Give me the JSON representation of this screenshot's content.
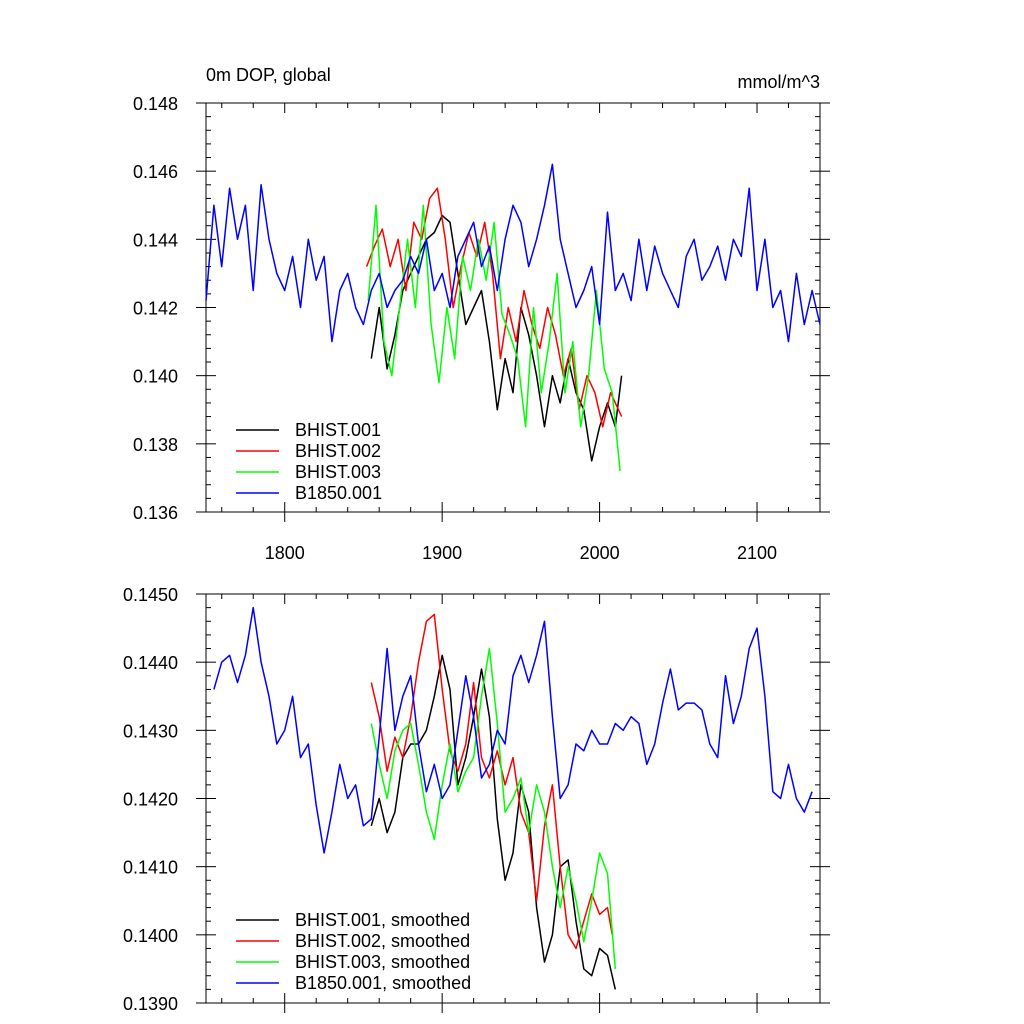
{
  "chart_data": [
    {
      "type": "line",
      "title": "0m DOP, global",
      "units": "mmol/m^3",
      "xlim": [
        1750,
        2140
      ],
      "ylim": [
        0.136,
        0.148
      ],
      "x_ticks": [
        1800,
        1900,
        2000,
        2100
      ],
      "x_tick_labels": [
        "1800",
        "1900",
        "2000",
        "2100"
      ],
      "y_ticks": [
        0.136,
        0.138,
        0.14,
        0.142,
        0.144,
        0.146,
        0.148
      ],
      "y_tick_labels": [
        "0.136",
        "0.138",
        "0.140",
        "0.142",
        "0.144",
        "0.146",
        "0.148"
      ],
      "legend_position": "bottom-left",
      "series": [
        {
          "name": "BHIST.001",
          "color": "#000000",
          "x": [
            1855,
            1860,
            1865,
            1870,
            1875,
            1880,
            1885,
            1890,
            1895,
            1900,
            1905,
            1910,
            1915,
            1920,
            1925,
            1930,
            1935,
            1940,
            1945,
            1950,
            1955,
            1960,
            1965,
            1970,
            1975,
            1980,
            1985,
            1990,
            1995,
            2000,
            2005,
            2010,
            2014
          ],
          "values": [
            0.1405,
            0.142,
            0.1402,
            0.1412,
            0.1425,
            0.143,
            0.1435,
            0.144,
            0.1442,
            0.1447,
            0.1445,
            0.143,
            0.1415,
            0.142,
            0.1425,
            0.141,
            0.139,
            0.1405,
            0.1395,
            0.142,
            0.1412,
            0.14,
            0.1385,
            0.14,
            0.1392,
            0.1405,
            0.1395,
            0.139,
            0.1375,
            0.1385,
            0.1392,
            0.1385,
            0.14
          ]
        },
        {
          "name": "BHIST.002",
          "color": "#ff0000",
          "x": [
            1852,
            1857,
            1862,
            1867,
            1872,
            1877,
            1882,
            1887,
            1892,
            1897,
            1902,
            1907,
            1912,
            1917,
            1922,
            1927,
            1932,
            1937,
            1942,
            1947,
            1952,
            1957,
            1962,
            1967,
            1972,
            1977,
            1982,
            1987,
            1992,
            1997,
            2002,
            2007,
            2014
          ],
          "values": [
            0.1432,
            0.1438,
            0.1443,
            0.1432,
            0.144,
            0.1425,
            0.1445,
            0.144,
            0.1452,
            0.1455,
            0.144,
            0.142,
            0.1432,
            0.1442,
            0.1435,
            0.1445,
            0.143,
            0.1405,
            0.142,
            0.141,
            0.1425,
            0.1415,
            0.1408,
            0.142,
            0.1412,
            0.14,
            0.1408,
            0.139,
            0.14,
            0.1395,
            0.1385,
            0.1395,
            0.1388
          ]
        },
        {
          "name": "BHIST.003",
          "color": "#00ff00",
          "x": [
            1853,
            1858,
            1863,
            1868,
            1873,
            1878,
            1883,
            1888,
            1893,
            1898,
            1903,
            1908,
            1913,
            1918,
            1923,
            1928,
            1933,
            1938,
            1943,
            1948,
            1953,
            1958,
            1963,
            1968,
            1973,
            1978,
            1983,
            1988,
            1993,
            1998,
            2003,
            2008,
            2013
          ],
          "values": [
            0.1422,
            0.145,
            0.141,
            0.14,
            0.142,
            0.144,
            0.142,
            0.145,
            0.1415,
            0.1398,
            0.142,
            0.1405,
            0.1435,
            0.1425,
            0.144,
            0.1428,
            0.1445,
            0.1418,
            0.1412,
            0.1405,
            0.1385,
            0.142,
            0.1395,
            0.141,
            0.143,
            0.1395,
            0.141,
            0.1385,
            0.14,
            0.1425,
            0.1402,
            0.1395,
            0.1372
          ]
        },
        {
          "name": "B1850.001",
          "color": "#0000ff",
          "x": [
            1750,
            1755,
            1760,
            1765,
            1770,
            1775,
            1780,
            1785,
            1790,
            1795,
            1800,
            1805,
            1810,
            1815,
            1820,
            1825,
            1830,
            1835,
            1840,
            1845,
            1850,
            1855,
            1860,
            1865,
            1870,
            1875,
            1880,
            1885,
            1890,
            1895,
            1900,
            1905,
            1910,
            1915,
            1920,
            1925,
            1930,
            1935,
            1940,
            1945,
            1950,
            1955,
            1960,
            1965,
            1970,
            1975,
            1980,
            1985,
            1990,
            1995,
            2000,
            2005,
            2010,
            2015,
            2020,
            2025,
            2030,
            2035,
            2040,
            2045,
            2050,
            2055,
            2060,
            2065,
            2070,
            2075,
            2080,
            2085,
            2090,
            2095,
            2100,
            2105,
            2110,
            2115,
            2120,
            2125,
            2130,
            2135,
            2140
          ],
          "values": [
            0.1422,
            0.145,
            0.1432,
            0.1455,
            0.144,
            0.145,
            0.1425,
            0.1456,
            0.144,
            0.143,
            0.1425,
            0.1435,
            0.142,
            0.144,
            0.1428,
            0.1435,
            0.141,
            0.1425,
            0.143,
            0.142,
            0.1415,
            0.1425,
            0.143,
            0.142,
            0.1425,
            0.1428,
            0.1435,
            0.143,
            0.144,
            0.1425,
            0.143,
            0.142,
            0.1435,
            0.144,
            0.1445,
            0.1432,
            0.1438,
            0.1425,
            0.144,
            0.145,
            0.1445,
            0.1432,
            0.144,
            0.145,
            0.1462,
            0.144,
            0.143,
            0.142,
            0.1425,
            0.1432,
            0.1415,
            0.1448,
            0.1425,
            0.143,
            0.1422,
            0.144,
            0.1425,
            0.1438,
            0.143,
            0.1425,
            0.142,
            0.1435,
            0.144,
            0.1428,
            0.1432,
            0.1438,
            0.1428,
            0.144,
            0.1435,
            0.1455,
            0.1425,
            0.144,
            0.142,
            0.1425,
            0.141,
            0.143,
            0.1415,
            0.1425,
            0.1415
          ]
        }
      ]
    },
    {
      "type": "line",
      "xlim": [
        1750,
        2140
      ],
      "ylim": [
        0.139,
        0.145
      ],
      "x_ticks": [
        1800,
        1900,
        2000,
        2100
      ],
      "y_ticks": [
        0.139,
        0.14,
        0.141,
        0.142,
        0.143,
        0.144,
        0.145
      ],
      "y_tick_labels": [
        "0.1390",
        "0.1400",
        "0.1410",
        "0.1420",
        "0.1430",
        "0.1440",
        "0.1450"
      ],
      "legend_position": "bottom-left",
      "series": [
        {
          "name": "BHIST.001, smoothed",
          "color": "#000000",
          "x": [
            1855,
            1860,
            1865,
            1870,
            1875,
            1880,
            1885,
            1890,
            1895,
            1900,
            1905,
            1910,
            1915,
            1920,
            1925,
            1930,
            1935,
            1940,
            1945,
            1950,
            1955,
            1960,
            1965,
            1970,
            1975,
            1980,
            1985,
            1990,
            1995,
            2000,
            2005,
            2010
          ],
          "values": [
            0.1416,
            0.142,
            0.1415,
            0.1418,
            0.1426,
            0.1428,
            0.1428,
            0.143,
            0.1435,
            0.1441,
            0.1436,
            0.1422,
            0.1426,
            0.1432,
            0.1439,
            0.1432,
            0.1417,
            0.1408,
            0.1412,
            0.1422,
            0.1418,
            0.1404,
            0.1396,
            0.14,
            0.141,
            0.1411,
            0.1402,
            0.1395,
            0.1394,
            0.1398,
            0.1397,
            0.1392
          ]
        },
        {
          "name": "BHIST.002, smoothed",
          "color": "#ff0000",
          "x": [
            1855,
            1860,
            1865,
            1870,
            1875,
            1880,
            1885,
            1890,
            1895,
            1900,
            1905,
            1910,
            1915,
            1920,
            1925,
            1930,
            1935,
            1940,
            1945,
            1950,
            1955,
            1960,
            1965,
            1970,
            1975,
            1980,
            1985,
            1990,
            1995,
            2000,
            2005,
            2008
          ],
          "values": [
            0.1437,
            0.1432,
            0.1424,
            0.1429,
            0.1426,
            0.1432,
            0.144,
            0.1446,
            0.1447,
            0.1436,
            0.1427,
            0.1424,
            0.1428,
            0.1437,
            0.1426,
            0.1423,
            0.1427,
            0.1422,
            0.1426,
            0.1418,
            0.1415,
            0.1405,
            0.1416,
            0.1422,
            0.141,
            0.14,
            0.1398,
            0.1402,
            0.1406,
            0.1403,
            0.1404,
            0.14
          ]
        },
        {
          "name": "BHIST.003, smoothed",
          "color": "#00ff00",
          "x": [
            1855,
            1860,
            1865,
            1870,
            1875,
            1880,
            1885,
            1890,
            1895,
            1900,
            1905,
            1910,
            1915,
            1920,
            1925,
            1930,
            1935,
            1940,
            1945,
            1950,
            1955,
            1960,
            1965,
            1970,
            1975,
            1980,
            1985,
            1990,
            1995,
            2000,
            2005,
            2010
          ],
          "values": [
            0.1431,
            0.1425,
            0.142,
            0.1427,
            0.143,
            0.1431,
            0.1425,
            0.1418,
            0.1414,
            0.1422,
            0.1428,
            0.1421,
            0.1424,
            0.1426,
            0.1435,
            0.1442,
            0.1431,
            0.1418,
            0.142,
            0.1423,
            0.1415,
            0.1422,
            0.1418,
            0.141,
            0.1404,
            0.141,
            0.1405,
            0.1399,
            0.1405,
            0.1412,
            0.1409,
            0.1395
          ]
        },
        {
          "name": "B1850.001, smoothed",
          "color": "#0000ff",
          "x": [
            1755,
            1760,
            1765,
            1770,
            1775,
            1780,
            1785,
            1790,
            1795,
            1800,
            1805,
            1810,
            1815,
            1820,
            1825,
            1830,
            1835,
            1840,
            1845,
            1850,
            1855,
            1860,
            1865,
            1870,
            1875,
            1880,
            1885,
            1890,
            1895,
            1900,
            1905,
            1910,
            1915,
            1920,
            1925,
            1930,
            1935,
            1940,
            1945,
            1950,
            1955,
            1960,
            1965,
            1970,
            1975,
            1980,
            1985,
            1990,
            1995,
            2000,
            2005,
            2010,
            2015,
            2020,
            2025,
            2030,
            2035,
            2040,
            2045,
            2050,
            2055,
            2060,
            2065,
            2070,
            2075,
            2080,
            2085,
            2090,
            2095,
            2100,
            2105,
            2110,
            2115,
            2120,
            2125,
            2130,
            2135
          ],
          "values": [
            0.1436,
            0.144,
            0.1441,
            0.1437,
            0.1441,
            0.1448,
            0.144,
            0.1435,
            0.1428,
            0.143,
            0.1435,
            0.1426,
            0.1428,
            0.1419,
            0.1412,
            0.1418,
            0.1425,
            0.142,
            0.1422,
            0.1416,
            0.1417,
            0.1429,
            0.1442,
            0.143,
            0.1435,
            0.1438,
            0.1428,
            0.1421,
            0.1425,
            0.142,
            0.1422,
            0.143,
            0.1438,
            0.1432,
            0.1423,
            0.1425,
            0.143,
            0.1428,
            0.1438,
            0.1441,
            0.1437,
            0.1441,
            0.1446,
            0.1432,
            0.142,
            0.1422,
            0.1428,
            0.1427,
            0.143,
            0.1428,
            0.1428,
            0.1431,
            0.143,
            0.1432,
            0.1431,
            0.1425,
            0.1428,
            0.1434,
            0.1439,
            0.1433,
            0.1434,
            0.1434,
            0.1433,
            0.1428,
            0.1426,
            0.1438,
            0.1431,
            0.1435,
            0.1442,
            0.1445,
            0.1435,
            0.1421,
            0.142,
            0.1425,
            0.142,
            0.1418,
            0.1421
          ]
        }
      ]
    }
  ]
}
